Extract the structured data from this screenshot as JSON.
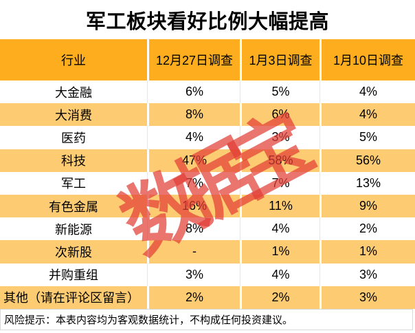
{
  "colors": {
    "header_orange": "#FDAD1E",
    "band_orange": "#FDCB72",
    "watermark_red": "#E23E36B8",
    "title_color": "#000000"
  },
  "chart_data": {
    "type": "table",
    "title": "军工板块看好比例大幅提高",
    "columns": [
      "行业",
      "12月27日调查",
      "1月3日调查",
      "1月10日调查"
    ],
    "rows": [
      [
        "大金融",
        "6%",
        "5%",
        "4%"
      ],
      [
        "大消费",
        "8%",
        "6%",
        "4%"
      ],
      [
        "医药",
        "4%",
        "3%",
        "5%"
      ],
      [
        "科技",
        "47%",
        "58%",
        "56%"
      ],
      [
        "军工",
        "7%",
        "7%",
        "13%"
      ],
      [
        "有色金属",
        "16%",
        "11%",
        "9%"
      ],
      [
        "新能源",
        "8%",
        "4%",
        "2%"
      ],
      [
        "次新股",
        "-",
        "1%",
        "1%"
      ],
      [
        "并购重组",
        "3%",
        "4%",
        "3%"
      ],
      [
        "其他（请在评论区留言）",
        "2%",
        "2%",
        "3%"
      ]
    ]
  },
  "watermark": {
    "text": "数据宝"
  },
  "footer": {
    "note": "风险提示：本表内容均为客观数据统计，不构成任何投资建议。"
  }
}
